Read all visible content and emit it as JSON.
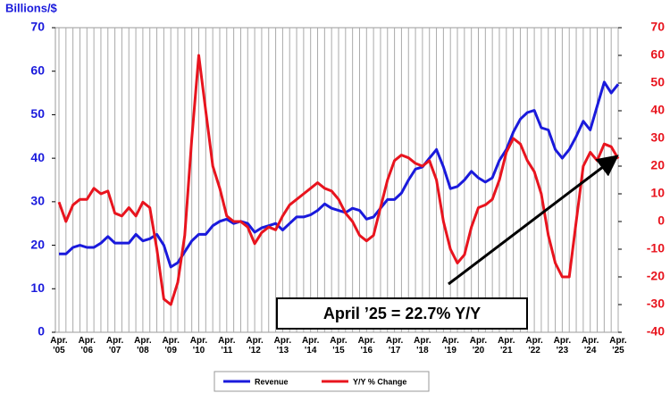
{
  "chart_data": {
    "type": "line",
    "y_label": "Billions/$",
    "annotation": "April ’25 = 22.7% Y/Y",
    "categories": [
      "Apr.\n'05",
      null,
      null,
      null,
      "Apr.\n'06",
      null,
      null,
      null,
      "Apr.\n'07",
      null,
      null,
      null,
      "Apr.\n'08",
      null,
      null,
      null,
      "Apr.\n'09",
      null,
      null,
      null,
      "Apr.\n'10",
      null,
      null,
      null,
      "Apr.\n'11",
      null,
      null,
      null,
      "Apr.\n'12",
      null,
      null,
      null,
      "Apr.\n'13",
      null,
      null,
      null,
      "Apr.\n'14",
      null,
      null,
      null,
      "Apr.\n'15",
      null,
      null,
      null,
      "Apr.\n'16",
      null,
      null,
      null,
      "Apr.\n'17",
      null,
      null,
      null,
      "Apr.\n'18",
      null,
      null,
      null,
      "Apr.\n'19",
      null,
      null,
      null,
      "Apr.\n'20",
      null,
      null,
      null,
      "Apr.\n'21",
      null,
      null,
      null,
      "Apr.\n'22",
      null,
      null,
      null,
      "Apr.\n'23",
      null,
      null,
      null,
      "Apr.\n'24",
      null,
      null,
      null,
      "Apr.\n'25"
    ],
    "series": [
      {
        "name": "Revenue",
        "color": "#1a1adc",
        "axis": "y",
        "values": [
          18,
          18,
          19.5,
          20,
          19.5,
          19.5,
          20.5,
          22,
          20.5,
          20.5,
          20.5,
          22.5,
          21,
          21.5,
          22.5,
          20,
          15,
          16,
          18.5,
          21,
          22.5,
          22.5,
          24.5,
          25.5,
          26,
          25,
          25.5,
          25,
          23,
          24,
          24.5,
          25,
          23.5,
          25,
          26.5,
          26.5,
          27,
          28,
          29.5,
          28.5,
          28,
          27.5,
          28.5,
          28,
          26,
          26.5,
          28.5,
          30.5,
          30.5,
          32,
          35,
          37.5,
          38,
          40,
          42,
          38,
          33,
          33.5,
          35,
          37,
          35.5,
          34.5,
          35.5,
          39.5,
          42,
          46,
          49,
          50.5,
          51,
          47,
          46.5,
          42,
          40,
          42,
          45,
          48.5,
          46.5,
          52,
          57.5,
          55,
          57
        ]
      },
      {
        "name": "Y/Y % Change",
        "color": "#e8141e",
        "axis": "y2",
        "values": [
          7,
          0,
          6,
          8,
          8,
          12,
          10,
          11,
          3,
          2,
          5,
          2,
          7,
          5,
          -10,
          -28,
          -30,
          -22,
          -5,
          30,
          60,
          40,
          20,
          12,
          2,
          0,
          0,
          -2,
          -8,
          -4,
          -2,
          -3,
          2,
          6,
          8,
          10,
          12,
          14,
          12,
          11,
          8,
          3,
          0,
          -5,
          -7,
          -5,
          5,
          15,
          22,
          24,
          23,
          21,
          20,
          22,
          15,
          0,
          -10,
          -15,
          -12,
          -2,
          5,
          6,
          8,
          15,
          25,
          30,
          28,
          22,
          18,
          10,
          -5,
          -15,
          -20,
          -20,
          0,
          20,
          25,
          22,
          28,
          27,
          22.7
        ]
      }
    ],
    "ylim": [
      0,
      70
    ],
    "yticks": [
      0,
      10,
      20,
      30,
      40,
      50,
      60,
      70
    ],
    "y2lim": [
      -40,
      70
    ],
    "y2ticks": [
      -40,
      -30,
      -20,
      -10,
      0,
      10,
      20,
      30,
      40,
      50,
      60,
      70
    ],
    "grid": true
  }
}
